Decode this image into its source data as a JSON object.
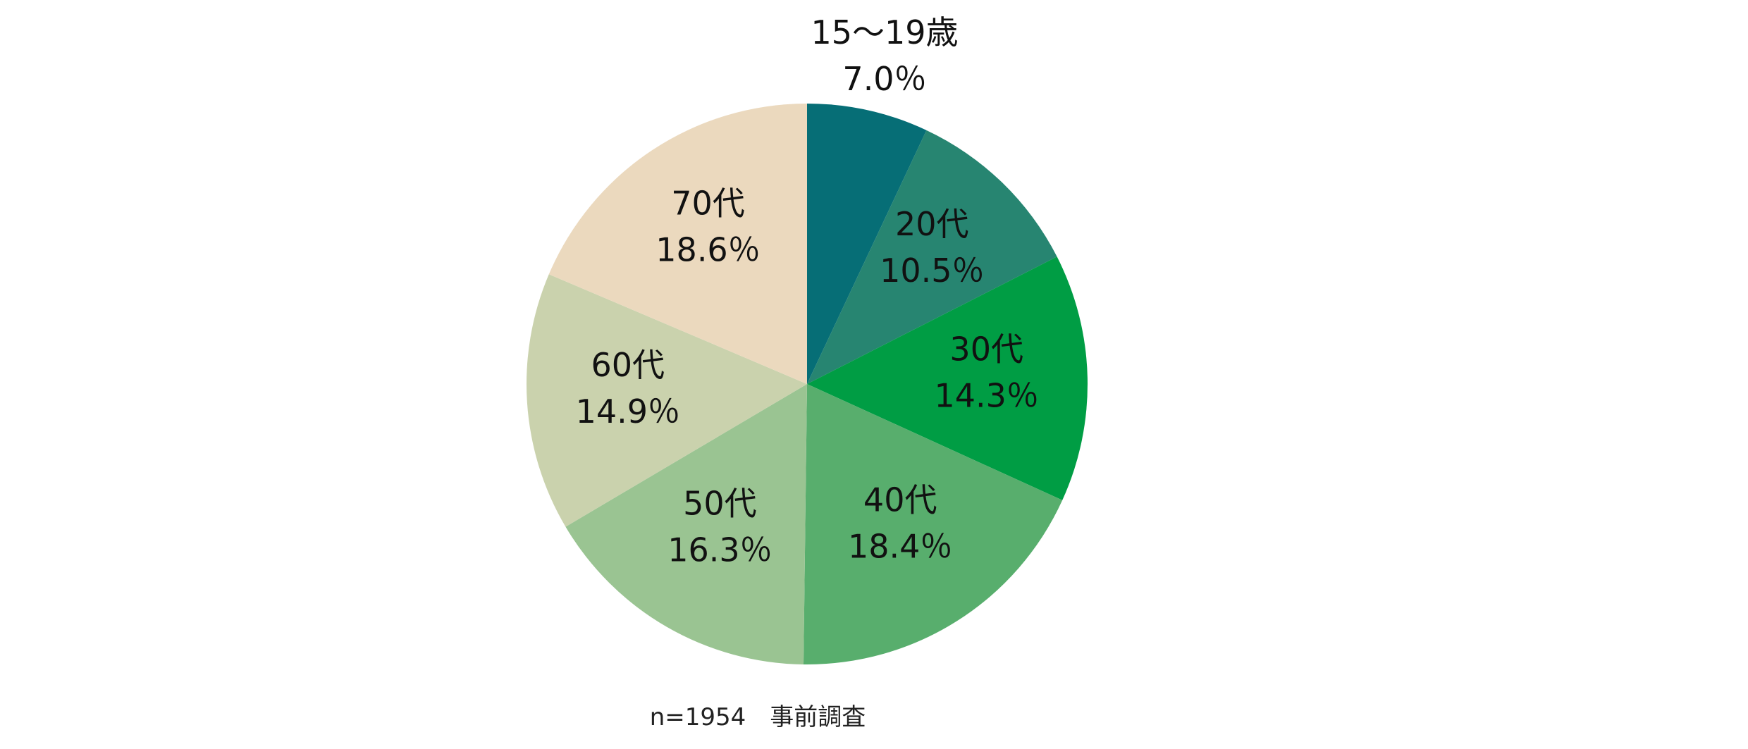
{
  "chart_data": {
    "type": "pie",
    "title": "",
    "start_angle": "12 o'clock, clockwise",
    "slices": [
      {
        "label": "15～19歳",
        "value": 7.0,
        "value_text": "7.0％",
        "color": "#066e76"
      },
      {
        "label": "20代",
        "value": 10.5,
        "value_text": "10.5％",
        "color": "#278571"
      },
      {
        "label": "30代",
        "value": 14.3,
        "value_text": "14.3％",
        "color": "#009d44"
      },
      {
        "label": "40代",
        "value": 18.4,
        "value_text": "18.4％",
        "color": "#58ae6d"
      },
      {
        "label": "50代",
        "value": 16.3,
        "value_text": "16.3％",
        "color": "#9ac492"
      },
      {
        "label": "60代",
        "value": 14.9,
        "value_text": "14.9％",
        "color": "#cad2ad"
      },
      {
        "label": "70代",
        "value": 18.6,
        "value_text": "18.6％",
        "color": "#ebd9be"
      }
    ],
    "note": "n=1954　事前調査"
  }
}
